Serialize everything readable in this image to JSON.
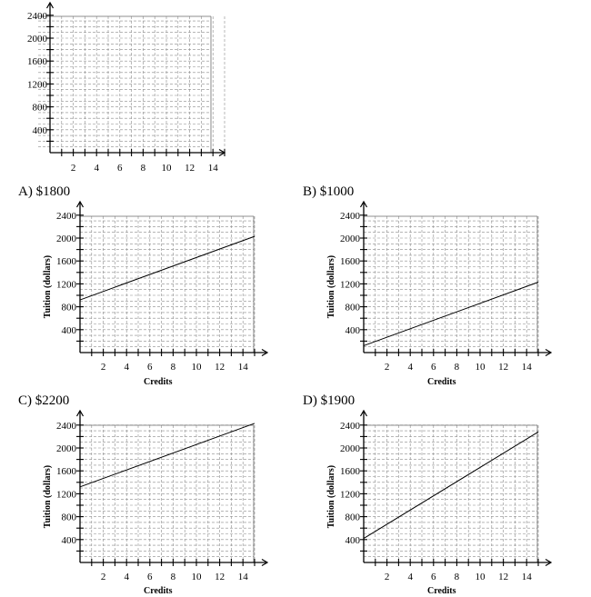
{
  "choices": [
    {
      "letter": "A)",
      "value": "$1800"
    },
    {
      "letter": "B)",
      "value": "$1000"
    },
    {
      "letter": "C)",
      "value": "$2200"
    },
    {
      "letter": "D)",
      "value": "$1900"
    }
  ],
  "chart_data": [
    {
      "type": "line",
      "title": "",
      "xlabel": "",
      "ylabel": "",
      "xlim": [
        0,
        15
      ],
      "ylim": [
        0,
        2500
      ],
      "x_ticks": [
        2,
        4,
        6,
        8,
        10,
        12,
        14
      ],
      "y_ticks": [
        400,
        800,
        1200,
        1600,
        2000,
        2400
      ],
      "grid": true,
      "series": []
    },
    {
      "type": "line",
      "title": "",
      "xlabel": "Credits",
      "ylabel": "Tuition (dollars)",
      "xlim": [
        0,
        15
      ],
      "ylim": [
        0,
        2500
      ],
      "x_ticks": [
        2,
        4,
        6,
        8,
        10,
        12,
        14
      ],
      "y_ticks": [
        400,
        800,
        1200,
        1600,
        2000,
        2400
      ],
      "grid": true,
      "series": [
        {
          "x": [
            0,
            15
          ],
          "y": [
            920,
            2030
          ]
        }
      ]
    },
    {
      "type": "line",
      "title": "",
      "xlabel": "Credits",
      "ylabel": "Tuition (dollars)",
      "xlim": [
        0,
        15
      ],
      "ylim": [
        0,
        2500
      ],
      "x_ticks": [
        2,
        4,
        6,
        8,
        10,
        12,
        14
      ],
      "y_ticks": [
        400,
        800,
        1200,
        1600,
        2000,
        2400
      ],
      "grid": true,
      "series": [
        {
          "x": [
            0,
            15
          ],
          "y": [
            120,
            1230
          ]
        }
      ]
    },
    {
      "type": "line",
      "title": "",
      "xlabel": "Credits",
      "ylabel": "Tuition (dollars)",
      "xlim": [
        0,
        15
      ],
      "ylim": [
        0,
        2500
      ],
      "x_ticks": [
        2,
        4,
        6,
        8,
        10,
        12,
        14
      ],
      "y_ticks": [
        400,
        800,
        1200,
        1600,
        2000,
        2400
      ],
      "grid": true,
      "series": [
        {
          "x": [
            0,
            15
          ],
          "y": [
            1320,
            2430
          ]
        }
      ]
    },
    {
      "type": "line",
      "title": "",
      "xlabel": "Credits",
      "ylabel": "Tuition (dollars)",
      "xlim": [
        0,
        15
      ],
      "ylim": [
        0,
        2500
      ],
      "x_ticks": [
        2,
        4,
        6,
        8,
        10,
        12,
        14
      ],
      "y_ticks": [
        400,
        800,
        1200,
        1600,
        2000,
        2400
      ],
      "grid": true,
      "series": [
        {
          "x": [
            0,
            15
          ],
          "y": [
            420,
            2280
          ]
        }
      ]
    }
  ]
}
